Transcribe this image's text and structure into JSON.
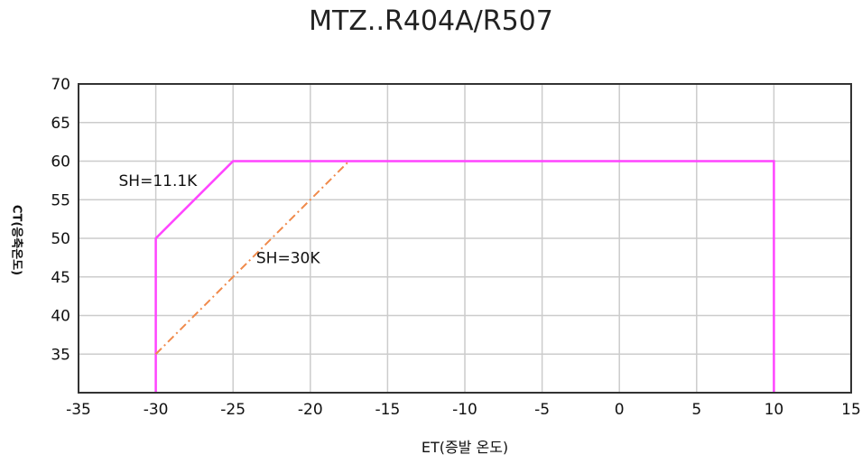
{
  "chart_data": {
    "type": "line",
    "title": "MTZ..R404A/R507",
    "xlabel": "ET(증발 온도)",
    "ylabel": "CT(응축온도)",
    "xlim": [
      -35,
      15
    ],
    "ylim": [
      30,
      70
    ],
    "x_ticks": [
      -35,
      -30,
      -25,
      -20,
      -15,
      -10,
      -5,
      0,
      5,
      10,
      15
    ],
    "y_ticks": [
      35,
      40,
      45,
      50,
      55,
      60,
      65,
      70
    ],
    "grid": true,
    "series": [
      {
        "name": "SH=11.1K",
        "style": "solid",
        "color": "#ff44ff",
        "x": [
          -30,
          -30,
          -25,
          10,
          10
        ],
        "y": [
          30,
          50,
          60,
          60,
          30
        ]
      },
      {
        "name": "SH=30K",
        "style": "dashdot",
        "color": "#f08a4b",
        "x": [
          -30,
          -17.5
        ],
        "y": [
          35,
          60
        ]
      }
    ],
    "annotations": [
      {
        "text": "SH=11.1K",
        "x": -32.4,
        "y": 57.5
      },
      {
        "text": "SH=30K",
        "x": -23.5,
        "y": 47.5
      }
    ]
  }
}
